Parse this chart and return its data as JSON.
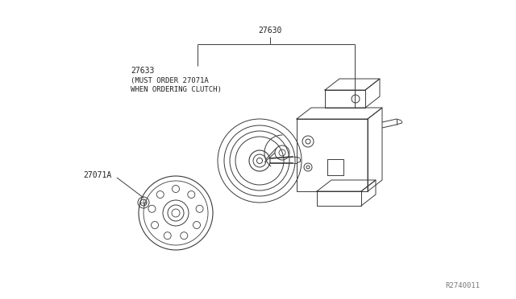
{
  "background_color": "#ffffff",
  "fig_width": 6.4,
  "fig_height": 3.72,
  "dpi": 100,
  "part_number_main": "27630",
  "part_number_clutch": "27633",
  "part_number_clutch_line1": "(MUST ORDER 27071A",
  "part_number_clutch_line2": "WHEN ORDERING CLUTCH)",
  "part_number_small": "27071A",
  "ref_number": "R2740011",
  "line_color": "#3a3a3a",
  "text_color": "#222222",
  "label_fontsize": 7.0,
  "ref_fontsize": 6.5
}
